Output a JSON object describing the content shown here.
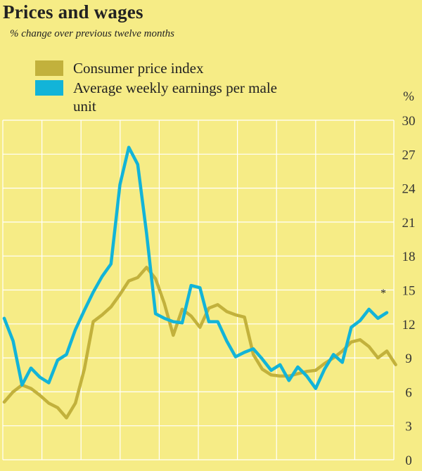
{
  "title": "Prices and wages",
  "subtitle": "% change over previous twelve months",
  "colors": {
    "background": "#f6ec86",
    "grid": "#ffffff",
    "cpi": "#c2b13c",
    "awe": "#12b4d8"
  },
  "chart_data": {
    "type": "line",
    "title": "Prices and wages",
    "subtitle": "% change over previous twelve months",
    "ylabel": "%",
    "ylim": [
      0,
      30
    ],
    "yticks": [
      0,
      3,
      6,
      9,
      12,
      15,
      18,
      21,
      24,
      27,
      30
    ],
    "grid": true,
    "legend_position": "top-left",
    "annotation": "*",
    "series": [
      {
        "name": "Consumer price index",
        "color": "#c2b13c",
        "values": [
          5.1,
          6.0,
          6.6,
          6.3,
          5.7,
          5.0,
          4.6,
          3.7,
          5.0,
          8.0,
          12.2,
          12.8,
          13.5,
          14.6,
          15.8,
          16.1,
          17.0,
          16.0,
          13.8,
          11.0,
          13.3,
          12.7,
          11.7,
          13.4,
          13.7,
          13.1,
          12.8,
          12.6,
          9.3,
          8.0,
          7.5,
          7.4,
          7.4,
          7.6,
          7.8,
          7.9,
          8.5,
          9.0,
          9.6,
          10.4,
          10.6,
          10.0,
          9.0,
          9.6,
          8.4
        ]
      },
      {
        "name": "Average weekly earnings per male unit",
        "color": "#12b4d8",
        "values": [
          12.5,
          10.5,
          6.6,
          8.1,
          7.3,
          6.8,
          8.8,
          9.3,
          11.5,
          13.2,
          14.8,
          16.2,
          17.3,
          24.3,
          27.6,
          26.1,
          20.0,
          12.9,
          12.5,
          12.2,
          12.1,
          15.4,
          15.2,
          12.2,
          12.2,
          10.5,
          9.1,
          9.5,
          9.8,
          8.9,
          7.9,
          8.4,
          7.0,
          8.2,
          7.4,
          6.3,
          8.0,
          9.3,
          8.6,
          11.7,
          12.3,
          13.3,
          12.5,
          13.0
        ]
      }
    ]
  }
}
